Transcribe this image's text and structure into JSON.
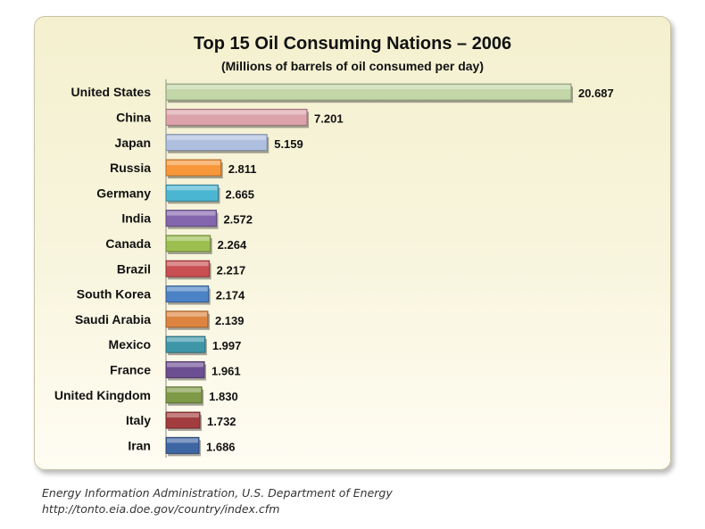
{
  "chart_data": {
    "type": "bar",
    "orientation": "horizontal",
    "title": "Top 15 Oil Consuming Nations – 2006",
    "subtitle": "(Millions of barrels of oil consumed per day)",
    "categories": [
      "United States",
      "China",
      "Japan",
      "Russia",
      "Germany",
      "India",
      "Canada",
      "Brazil",
      "South Korea",
      "Saudi Arabia",
      "Mexico",
      "France",
      "United Kingdom",
      "Italy",
      "Iran"
    ],
    "values": [
      20.687,
      7.201,
      5.159,
      2.811,
      2.665,
      2.572,
      2.264,
      2.217,
      2.174,
      2.139,
      1.997,
      1.961,
      1.83,
      1.732,
      1.686
    ],
    "value_labels": [
      "20.687",
      "7.201",
      "5.159",
      "2.811",
      "2.665",
      "2.572",
      "2.264",
      "2.217",
      "2.174",
      "2.139",
      "1.997",
      "1.961",
      "1.830",
      "1.732",
      "1.686"
    ],
    "bar_colors": [
      "#c3d6a8",
      "#dca3aa",
      "#aebfe0",
      "#f7973a",
      "#4bb6d1",
      "#8366ad",
      "#9cbf50",
      "#c94f52",
      "#4c82c6",
      "#dd8540",
      "#3e97a9",
      "#6c4e92",
      "#7f9a46",
      "#a33c3e",
      "#3e66a3"
    ],
    "xlim": [
      0,
      21
    ],
    "grid": false,
    "legend": "none"
  },
  "source": {
    "line1": "Energy Information Administration, U.S. Department of Energy",
    "line2": "http://tonto.eia.doe.gov/country/index.cfm"
  }
}
